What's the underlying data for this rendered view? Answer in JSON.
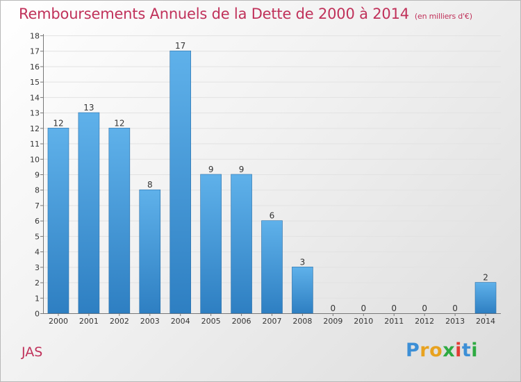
{
  "title": "Remboursements Annuels de la Dette de 2000 à 2014",
  "subtitle": "(en milliers d'€)",
  "commune": "JAS",
  "brand": {
    "letters": [
      "P",
      "r",
      "o",
      "x",
      "i",
      "t",
      "i"
    ],
    "colors": [
      "#3c8fd6",
      "#e8a21f",
      "#e8a21f",
      "#2eaa42",
      "#e23c34",
      "#3c8fd6",
      "#2eaa42"
    ]
  },
  "colors": {
    "accent": "#c0315a",
    "bar_top": "#5fb1ea",
    "bar_bottom": "#2e7fc2"
  },
  "chart_data": {
    "type": "bar",
    "title": "Remboursements Annuels de la Dette de 2000 à 2014",
    "subtitle": "(en milliers d'€)",
    "categories": [
      "2000",
      "2001",
      "2002",
      "2003",
      "2004",
      "2005",
      "2006",
      "2007",
      "2008",
      "2009",
      "2010",
      "2011",
      "2012",
      "2013",
      "2014"
    ],
    "values": [
      12,
      13,
      12,
      8,
      17,
      9,
      9,
      6,
      3,
      0,
      0,
      0,
      0,
      0,
      2
    ],
    "ylim": [
      0,
      18
    ],
    "yticks": [
      0,
      1,
      2,
      3,
      4,
      5,
      6,
      7,
      8,
      9,
      10,
      11,
      12,
      13,
      14,
      15,
      16,
      17,
      18
    ],
    "grid": true,
    "legend": "none"
  }
}
